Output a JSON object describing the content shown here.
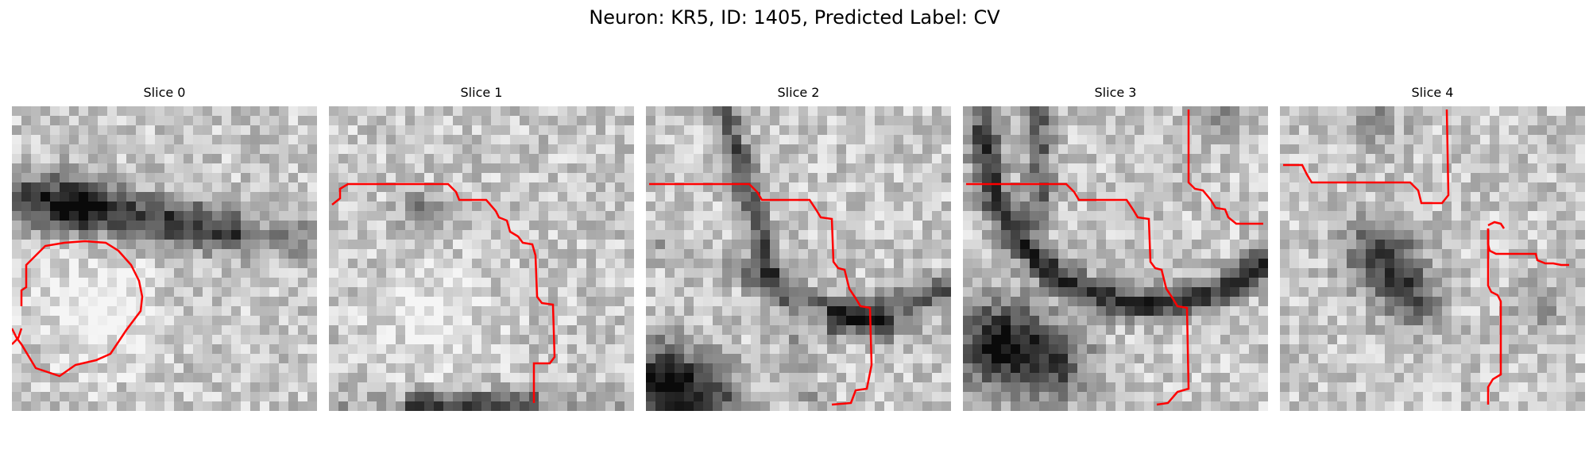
{
  "figure": {
    "title": "Neuron: KR5, ID: 1405, Predicted Label: CV"
  },
  "panels": [
    {
      "title": "Slice 0",
      "seed": 11,
      "dark_features": "upper dark band, lighter lower-left region"
    },
    {
      "title": "Slice 1",
      "seed": 23,
      "dark_features": "light texture, dark bottom edge"
    },
    {
      "title": "Slice 2",
      "seed": 37,
      "dark_features": "diagonal dark membranes, dark lower-left corner"
    },
    {
      "title": "Slice 3",
      "seed": 53,
      "dark_features": "dark curved membrane, dark lower-left blob"
    },
    {
      "title": "Slice 4",
      "seed": 71,
      "dark_features": "dark central cluster"
    }
  ],
  "colors": {
    "contour": "#ff0000",
    "background": "#ffffff"
  }
}
